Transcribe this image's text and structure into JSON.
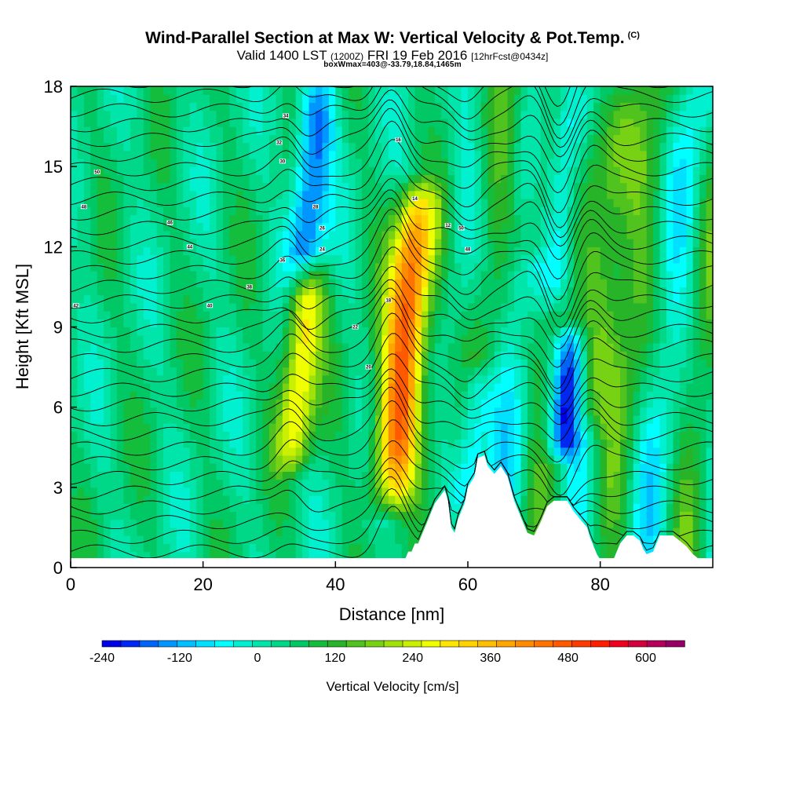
{
  "header": {
    "title": "Wind-Parallel Section at Max W: Vertical Velocity & Pot.Temp.",
    "title_mark": "(C)",
    "valid_prefix": "Valid 1400 LST",
    "valid_utc": "(1200Z)",
    "valid_date": "FRI 19 Feb 2016",
    "forecast": "[12hrFcst@0434z]",
    "box_info": "boxWmax=403@-33.79,18.84,1465m"
  },
  "chart_data": {
    "type": "contour-section",
    "xlabel": "Distance [nm]",
    "ylabel": "Height [Kft MSL]",
    "xlim": [
      0,
      97
    ],
    "ylim": [
      0,
      18
    ],
    "x_ticks": [
      0,
      20,
      40,
      60,
      80
    ],
    "y_ticks": [
      0,
      3,
      6,
      9,
      12,
      15,
      18
    ],
    "colorbar": {
      "label": "Vertical Velocity [cm/s]",
      "tick_labels": [
        "-240",
        "-120",
        "0",
        "120",
        "240",
        "360",
        "480",
        "600"
      ],
      "tick_values": [
        -240,
        -120,
        0,
        120,
        240,
        360,
        480,
        600
      ],
      "bin_edges": [
        -270,
        -240,
        -210,
        -180,
        -150,
        -120,
        -90,
        -60,
        -30,
        0,
        30,
        60,
        90,
        120,
        150,
        180,
        210,
        240,
        270,
        300,
        330,
        360,
        390,
        420,
        450,
        480,
        510,
        540,
        570,
        600,
        630,
        660
      ],
      "colors": [
        "#0000e6",
        "#0028f0",
        "#0064f8",
        "#0096ff",
        "#00beff",
        "#00e0ff",
        "#00ffff",
        "#00f0d0",
        "#00e6aa",
        "#00d888",
        "#00c864",
        "#14be3c",
        "#28b428",
        "#50c31e",
        "#78d214",
        "#a0e10a",
        "#c8f000",
        "#f0ff00",
        "#ffe600",
        "#ffd200",
        "#ffbe00",
        "#ffa500",
        "#ff8c00",
        "#ff7300",
        "#ff5a00",
        "#ff3c00",
        "#ff1e00",
        "#f0001e",
        "#d2003c",
        "#b4005a",
        "#960064"
      ]
    },
    "terrain_kft": [
      [
        0,
        0
      ],
      [
        49,
        0
      ],
      [
        49.5,
        0.3
      ],
      [
        50.5,
        0.3
      ],
      [
        51,
        0.6
      ],
      [
        51.5,
        0.6
      ],
      [
        52,
        0.9
      ],
      [
        52.5,
        0.9
      ],
      [
        53,
        1.2
      ],
      [
        53.5,
        1.5
      ],
      [
        54,
        1.8
      ],
      [
        54.5,
        2.1
      ],
      [
        55,
        2.4
      ],
      [
        56.5,
        2.9
      ],
      [
        57,
        2.5
      ],
      [
        57.5,
        1.5
      ],
      [
        58,
        1.3
      ],
      [
        58.5,
        1.8
      ],
      [
        59.5,
        2.4
      ],
      [
        60,
        3.0
      ],
      [
        61,
        3.4
      ],
      [
        61.5,
        4.1
      ],
      [
        62.5,
        4.2
      ],
      [
        63,
        3.8
      ],
      [
        64,
        3.5
      ],
      [
        65,
        3.8
      ],
      [
        66,
        3.4
      ],
      [
        67,
        2.5
      ],
      [
        68,
        1.9
      ],
      [
        69,
        1.3
      ],
      [
        70,
        1.2
      ],
      [
        71,
        1.7
      ],
      [
        72,
        2.3
      ],
      [
        73,
        2.5
      ],
      [
        75,
        2.5
      ],
      [
        76,
        2.1
      ],
      [
        77,
        1.8
      ],
      [
        78,
        1.5
      ],
      [
        78.5,
        1.1
      ],
      [
        79,
        0.8
      ],
      [
        79.5,
        0.5
      ],
      [
        80,
        0.3
      ],
      [
        81,
        0.2
      ],
      [
        82,
        0.3
      ],
      [
        82.5,
        0.6
      ],
      [
        83,
        0.9
      ],
      [
        84,
        1.2
      ],
      [
        85,
        1.2
      ],
      [
        86,
        1.0
      ],
      [
        86.5,
        0.7
      ],
      [
        87,
        0.5
      ],
      [
        88,
        0.6
      ],
      [
        88.5,
        0.9
      ],
      [
        89,
        1.2
      ],
      [
        91,
        1.2
      ],
      [
        92,
        1.0
      ],
      [
        93,
        0.8
      ],
      [
        94,
        0.5
      ],
      [
        95,
        0.3
      ],
      [
        95.5,
        0
      ],
      [
        97,
        0
      ]
    ],
    "bands_cm_s": [
      {
        "center_km_nm": 33.5,
        "peak": 270,
        "base_kft": 4.0,
        "top_kft": 11.0
      },
      {
        "center_km_nm": 48.5,
        "peak": 450,
        "base_kft": 2.5,
        "top_kft": 14.0
      },
      {
        "center_km_nm": 35.0,
        "peak": -230,
        "base_kft": 11.0,
        "top_kft": 18.0
      },
      {
        "center_km_nm": 74.0,
        "peak": -250,
        "base_kft": 4.5,
        "top_kft": 8.5
      },
      {
        "center_km_nm": 78.5,
        "peak": 220,
        "base_kft": 5.5,
        "top_kft": 18.0
      },
      {
        "center_km_nm": 73.5,
        "peak": -200,
        "base_kft": 10.0,
        "top_kft": 18.0
      },
      {
        "center_km_nm": 60.0,
        "peak": -180,
        "base_kft": 2.5,
        "top_kft": 7.0
      },
      {
        "center_km_nm": 70.0,
        "peak": 140,
        "base_kft": 12.0,
        "top_kft": 18.0
      }
    ],
    "contour_labels": [
      "50",
      "48",
      "46",
      "44",
      "42",
      "40",
      "38",
      "36",
      "34",
      "32",
      "30",
      "28",
      "26",
      "24",
      "22",
      "20",
      "18",
      "16",
      "14",
      "12"
    ]
  }
}
